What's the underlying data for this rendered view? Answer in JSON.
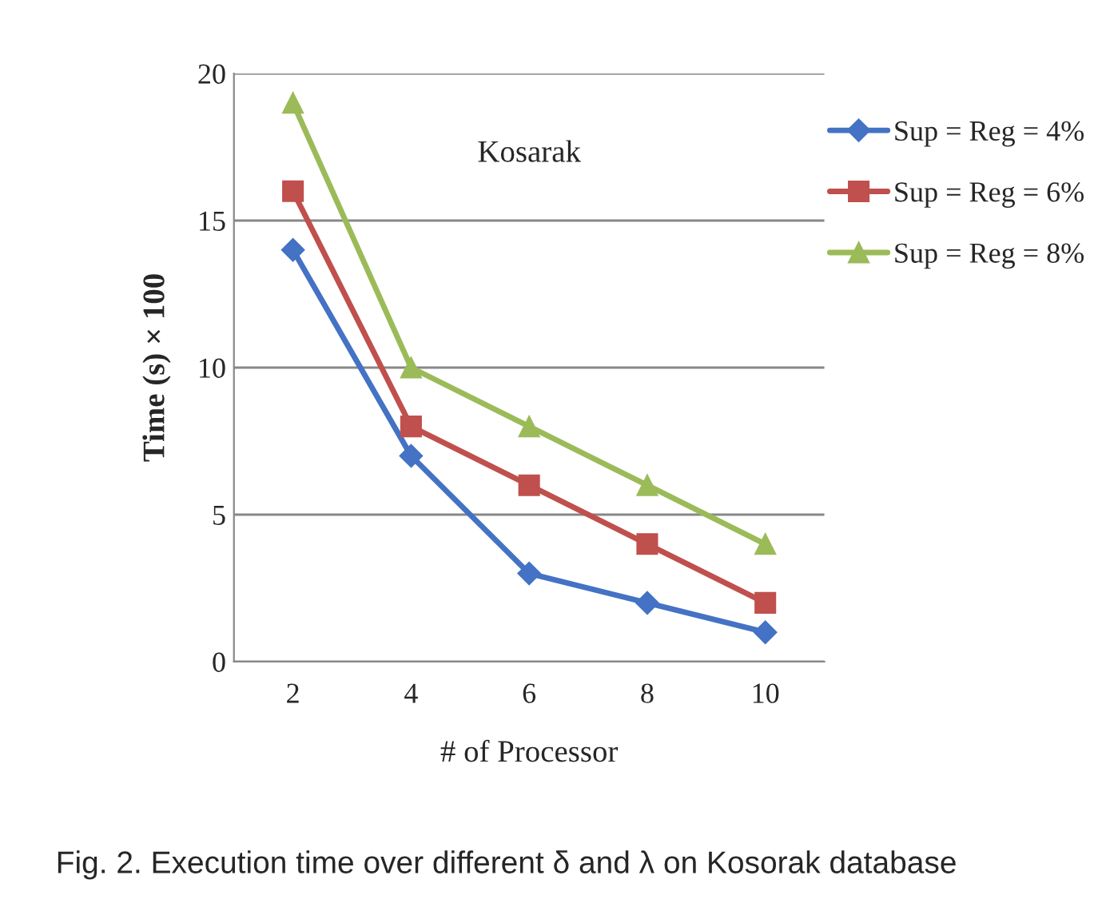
{
  "chart_data": {
    "type": "line",
    "xlabel": "# of Processor",
    "ylabel": "Time (s) × 100",
    "categories": [
      "2",
      "4",
      "6",
      "8",
      "10"
    ],
    "series": [
      {
        "name": "Sup = Reg = 4%",
        "color": "#4472c4",
        "marker": "diamond",
        "values": [
          14,
          7,
          3,
          2,
          1
        ]
      },
      {
        "name": "Sup = Reg = 6%",
        "color": "#c0504d",
        "marker": "square",
        "values": [
          16,
          8,
          6,
          4,
          2
        ]
      },
      {
        "name": "Sup = Reg = 8%",
        "color": "#9bbb59",
        "marker": "triangle",
        "values": [
          19,
          10,
          8,
          6,
          4
        ]
      }
    ],
    "ylim": [
      0,
      20
    ],
    "yticks": [
      0,
      5,
      10,
      15,
      20
    ],
    "grid": "y",
    "legend": "top right",
    "annotations": [
      {
        "text": "Kosarak"
      },
      "Fig. 2. Execution time over different δ and λ on Kosorak database"
    ]
  }
}
